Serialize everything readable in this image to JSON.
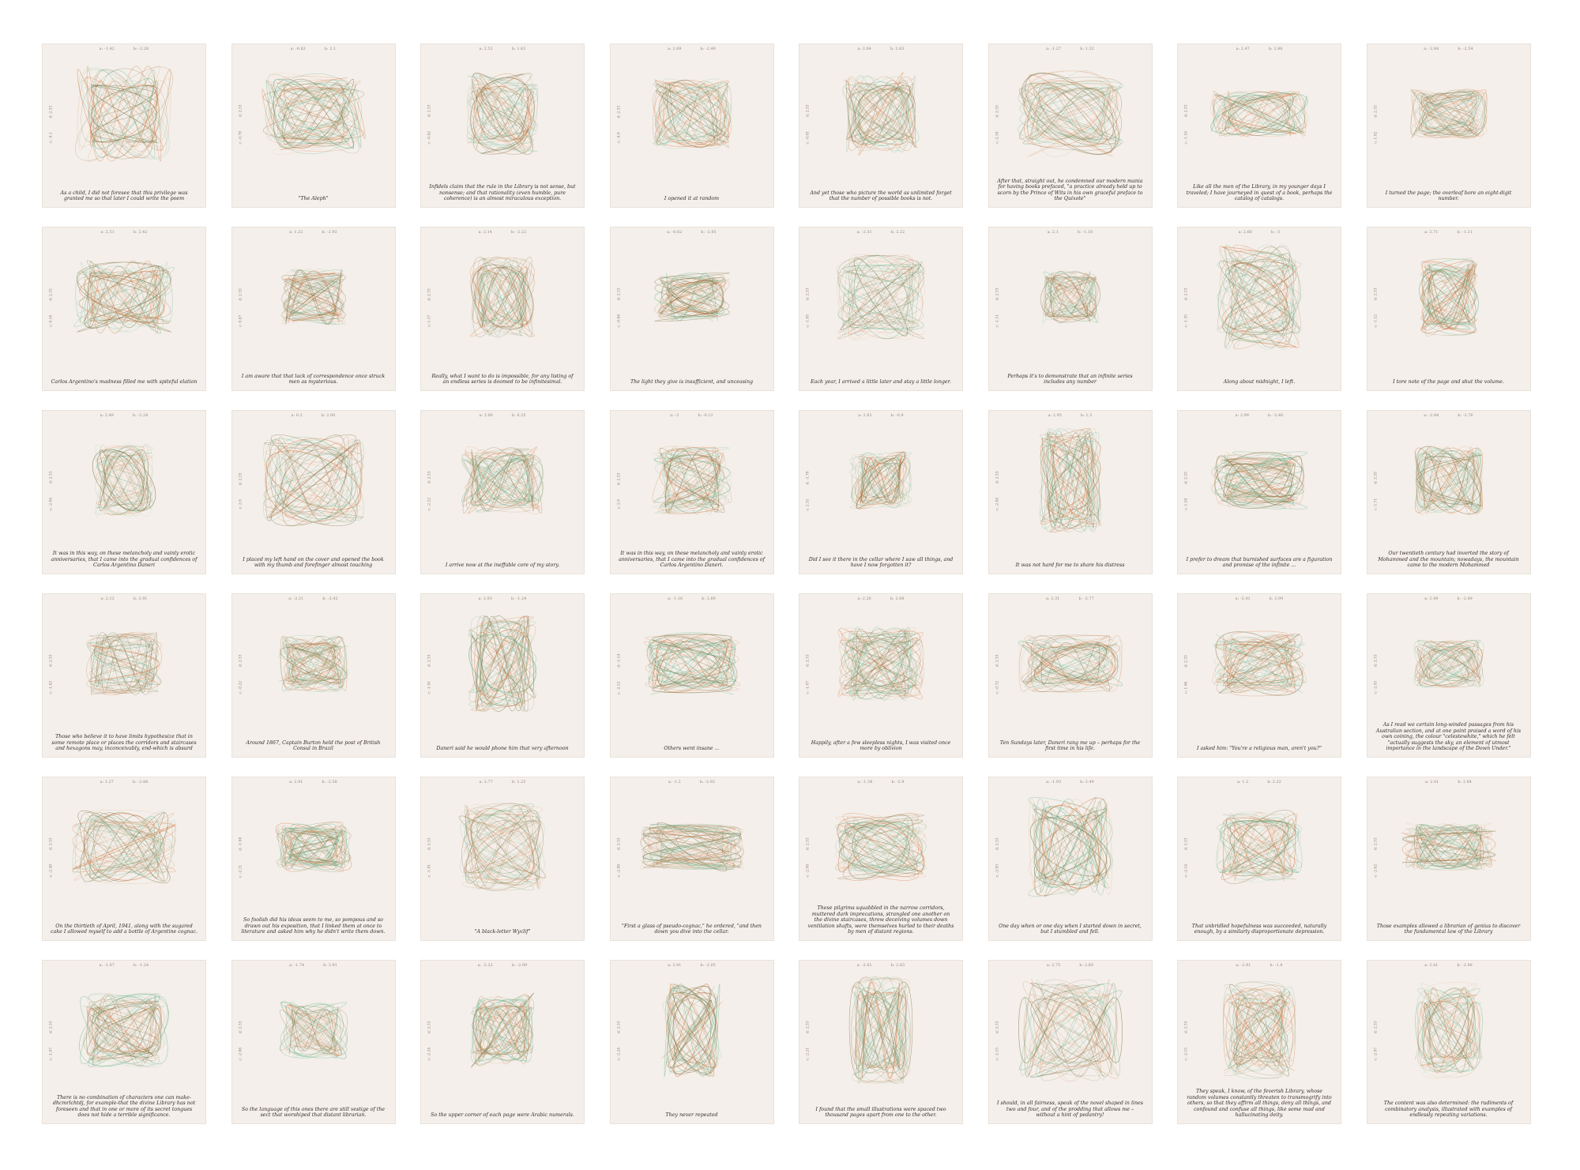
{
  "colors": {
    "card_bg": "#f4efea",
    "orange": "#d8743a",
    "green": "#5fb48a",
    "olive": "#6f6230",
    "text": "#332c26",
    "muted": "#8a8178"
  },
  "cards": [
    {
      "a": "a: -1.42",
      "b": "b: -2.28",
      "c": "c: -0.1",
      "d": "d: 2.33",
      "caption": "As a child, I did not foresee that this privilege was granted me so that later I could write the poem"
    },
    {
      "a": "a: -0.62",
      "b": "b: 2.1",
      "c": "c: -0.78",
      "d": "d: 2.33",
      "caption": "\"The Aleph\""
    },
    {
      "a": "a: 2.52",
      "b": "b: 1.63",
      "c": "c: -0.02",
      "d": "d: 2.33",
      "caption": "Infidels claim that the rule in the Library is not sense, but nonsense; and that rationality (even humble, pure coherence) is an almost miraculous exception."
    },
    {
      "a": "a: 2.69",
      "b": "b: -2.49",
      "c": "c: -0.9",
      "d": "d: 2.33",
      "caption": "I opened it at random"
    },
    {
      "a": "a: 2.04",
      "b": "b: 2.63",
      "c": "c: -0.91",
      "d": "d: 2.33",
      "caption": "And yet those who picture the world as unlimited forget that the number of possible books is not."
    },
    {
      "a": "a: -1.27",
      "b": "b: 1.32",
      "c": "c: 2.19",
      "d": "d: 2.33",
      "caption": "After that, straight out, he condemned our modern mania for having books prefaced, \"a practice already held up to scorn by the Prince of Wits in his own graceful preface to the Quixote\""
    },
    {
      "a": "a: 2.47",
      "b": "b: 2.86",
      "c": "c: -1.16",
      "d": "d: 2.33",
      "caption": "Like all the men of the Library, in my younger days I traveled; I have journeyed in quest of a book, perhaps the catalog of catalogs."
    },
    {
      "a": "a: -2.84",
      "b": "b: -2.54",
      "c": "c: 1.92",
      "d": "d: 2.33",
      "caption": "I turned the page; the overleaf bore an eight-digit number."
    },
    {
      "a": "a: 2.51",
      "b": "b: 2.42",
      "c": "c: 0.16",
      "d": "d: 2.33",
      "caption": "Carlos Argentino's madness filled me with spiteful elation"
    },
    {
      "a": "a: 1.22",
      "b": "b: -2.92",
      "c": "c: 0.87",
      "d": "d: 2.33",
      "caption": "I am aware that that lack of correspondence once struck men as mysterious."
    },
    {
      "a": "a: 2.14",
      "b": "b: -2.22",
      "c": "c: 1.17",
      "d": "d: 2.33",
      "caption": "Really, what I want to do is impossible, for any listing of an endless series is doomed to be infinitesimal."
    },
    {
      "a": "a: -0.62",
      "b": "b: -2.05",
      "c": "c: -0.84",
      "d": "d: 2.33",
      "caption": "The light they give is insufficient, and unceasing"
    },
    {
      "a": "a: -2.31",
      "b": "b: 2.22",
      "c": "c: -1.85",
      "d": "d: 2.33",
      "caption": "Each year, I arrived a little later and stay a little longer."
    },
    {
      "a": "a: 2.1",
      "b": "b: -1.18",
      "c": "c: -1.11",
      "d": "d: 2.33",
      "caption": "Perhaps it's to demonstrate that an infinite series includes any number"
    },
    {
      "a": "a: 2.66",
      "b": "b: -3",
      "c": "c: -1.35",
      "d": "d: 2.33",
      "caption": "Along about midnight, I left."
    },
    {
      "a": "a: 2.71",
      "b": "b: -1.21",
      "c": "c: -1.12",
      "d": "d: 2.33",
      "caption": "I tore note of the page and shut the volume."
    },
    {
      "a": "a: 2.49",
      "b": "b: -2.24",
      "c": "c: -2.94",
      "d": "d: 2.33",
      "caption": "It was in this way, on these melancholy and vainly erotic anniversaries, that I came into the gradual confidences of Carlos Argentino Daneri"
    },
    {
      "a": "a: 0.2",
      "b": "b: 2.06",
      "c": "c: 2.6",
      "d": "d: 2.33",
      "caption": "I placed my left hand on the cover and opened the book with my thumb and forefinger almost touching"
    },
    {
      "a": "a: 3.00",
      "b": "b: 0.35",
      "c": "c: -2.22",
      "d": "d: 2.33",
      "caption": "I arrive now at the ineffable core of my story."
    },
    {
      "a": "a: -3",
      "b": "b: -0.12",
      "c": "c: 2.9",
      "d": "d: 2.33",
      "caption": "It was in this way, on these melancholy and vainly erotic anniversaries, that I came into the gradual confidences of Carlos Argentino Daneri."
    },
    {
      "a": "a: 2.63",
      "b": "b: -0.9",
      "c": "c: 2.51",
      "d": "d: -1.78",
      "caption": "Did I see it there in the cellar where I saw all things, and have I now forgotten it?"
    },
    {
      "a": "a: 2.95",
      "b": "b: 1.3",
      "c": "c: -2.84",
      "d": "d: 2.33",
      "caption": "It was not hard for me to share his distress"
    },
    {
      "a": "a: 2.99",
      "b": "b: -2.46",
      "c": "c: 1.59",
      "d": "d: 2.33",
      "caption": "I prefer to dream that burnished surfaces are a figuration and promise of the infinite ..."
    },
    {
      "a": "a: -2.84",
      "b": "b: -2.76",
      "c": "c: 1.71",
      "d": "d: 2.33",
      "caption": "Our twentieth century had inverted the story of Mohammed and the mountain; nowadays, the mountain came to the modern Mohammed"
    },
    {
      "a": "a: 2.12",
      "b": "b: 2.91",
      "c": "c: -1.63",
      "d": "d: 2.33",
      "caption": "Those who believe it to have limits hypothesize that in some remote place or places the corridors and staircases and hexagons may, inconceivably, end-which is absurd"
    },
    {
      "a": "a: -2.21",
      "b": "b: -2.42",
      "c": "c: -0.22",
      "d": "d: 2.33",
      "caption": "Around 1867, Captain Burton held the post of British Consul in Brazil"
    },
    {
      "a": "a: 2.93",
      "b": "b: -1.24",
      "c": "c: -1.91",
      "d": "d: 2.33",
      "caption": "Daneri said he would phone him that very afternoon"
    },
    {
      "a": "a: -1.16",
      "b": "b: 2.89",
      "c": "c: -2.12",
      "d": "d: -1.14",
      "caption": "Others went insane ..."
    },
    {
      "a": "a: 2.26",
      "b": "b: 2.68",
      "c": "c: -1.07",
      "d": "d: 2.33",
      "caption": "Happily, after a few sleepless nights, I was visited once more by oblivion"
    },
    {
      "a": "a: 2.31",
      "b": "b: -2.77",
      "c": "c: -0.72",
      "d": "d: 2.33",
      "caption": "Ten Sundays later, Daneri rang me up – perhaps for the first time in his life."
    },
    {
      "a": "a: -2.41",
      "b": "b: 2.99",
      "c": "c: 1.96",
      "d": "d: 2.33",
      "caption": "I asked him: \"You're a religious man, aren't you?\""
    },
    {
      "a": "a: 2.49",
      "b": "b: -2.49",
      "c": "c: -2.55",
      "d": "d: 2.33",
      "caption": "As I read we certain long-winded passages from his Australian section, and at one point praised a word of his own coining, the colour \"celestewhite,\" which he felt \"actually suggests the sky, an element of utmost importance in the landscape of the Down Under.\""
    },
    {
      "a": "a: 1.27",
      "b": "b: -2.88",
      "c": "c: -2.49",
      "d": "d: 2.33",
      "caption": "On the thirtieth of April, 1941, along with the sugared cake I allowed myself to add a bottle of Argentine cognac."
    },
    {
      "a": "a: 2.91",
      "b": "b: -2.58",
      "c": "c: -2.11",
      "d": "d: -1.98",
      "caption": "So foolish did his ideas seem to me, so pompous and so drawn out his exposition, that I linked them at once to literature and asked him why he didn't write them down."
    },
    {
      "a": "a: 2.77",
      "b": "b: 1.25",
      "c": "c: -1.81",
      "d": "d: 2.33",
      "caption": "\"A black-letter Wyclif\""
    },
    {
      "a": "a: -1.2",
      "b": "b: -2.92",
      "c": "c: -2.98",
      "d": "d: 2.33",
      "caption": "\"First a glass of pseudo-cognac,\" he ordered, \"and then down you dive into the cellar."
    },
    {
      "a": "a: -1.38",
      "b": "b: -2.9",
      "c": "c: -2.98",
      "d": "d: 2.33",
      "caption": "These pilgrims squabbled in the narrow corridors, muttered dark imprecations, strangled one another on the divine staircases, threw deceiving volumes down ventilation shafts, were themselves hurled to their deaths by men of distant regions."
    },
    {
      "a": "a: -1.93",
      "b": "b: 2.49",
      "c": "c: -2.93",
      "d": "d: 2.33",
      "caption": "One day when or one day when I started down in secret, but I stumbled and fell."
    },
    {
      "a": "a: 1.2",
      "b": "b: 2.22",
      "c": "c: -2.14",
      "d": "d: 2.33",
      "caption": "That unbridled hopefulness was succeeded, naturally enough, by a similarly disproportionate depression."
    },
    {
      "a": "a: 2.01",
      "b": "b: 2.84",
      "c": "c: -2.62",
      "d": "d: 2.33",
      "caption": "Those examples allowed a librarian of genius to discover the fundamental law of the Library"
    },
    {
      "a": "a: -1.07",
      "b": "b: -1.24",
      "c": "c: -1.07",
      "d": "d: 2.33",
      "caption": "There is no combination of characters one can make-dhcmrlchtdj, for example-that the divine Library has not foreseen and that in one or more of its secret tongues does not hide a terrible significance."
    },
    {
      "a": "a: -1.74",
      "b": "b: 3.91",
      "c": "c: -2.08",
      "d": "d: 2.33",
      "caption": "So the language of this ones there are still vestige of the sect that worshiped that distant librarian."
    },
    {
      "a": "a: -2.22",
      "b": "b: -2.99",
      "c": "c: -2.24",
      "d": "d: 2.33",
      "caption": "So the upper corner of each page were Arabic numerals."
    },
    {
      "a": "a: 2.91",
      "b": "b: -2.05",
      "c": "c: -2.24",
      "d": "d: 2.33",
      "caption": "They never repeated"
    },
    {
      "a": "a: -2.61",
      "b": "b: 2.63",
      "c": "c: -2.21",
      "d": "d: 2.33",
      "caption": "I found that the small illustrations were spaced two thousand pages apart from one to the other."
    },
    {
      "a": "a: 2.75",
      "b": "b: 2.69",
      "c": "c: -2.15",
      "d": "d: 2.33",
      "caption": "I should, in all fairness, speak of the novel shaped in lines two and four, and of the prodding that allows me – without a hint of pedantry!"
    },
    {
      "a": "a: -2.91",
      "b": "b: -1.8",
      "c": "c: -2.15",
      "d": "d: 2.33",
      "caption": "They speak, I know, of the feverish Library, whose random volumes constantly threaten to transmogrify into others, so that they affirm all things, deny all things, and confound and confuse all things, like some mad and hallucinating deity."
    },
    {
      "a": "a: 2.41",
      "b": "b: -2.98",
      "c": "c: -2.07",
      "d": "d: 2.33",
      "caption": "The content was also determined: the rudiments of combinatory analysis, illustrated with examples of endlessly repeating variations."
    }
  ]
}
